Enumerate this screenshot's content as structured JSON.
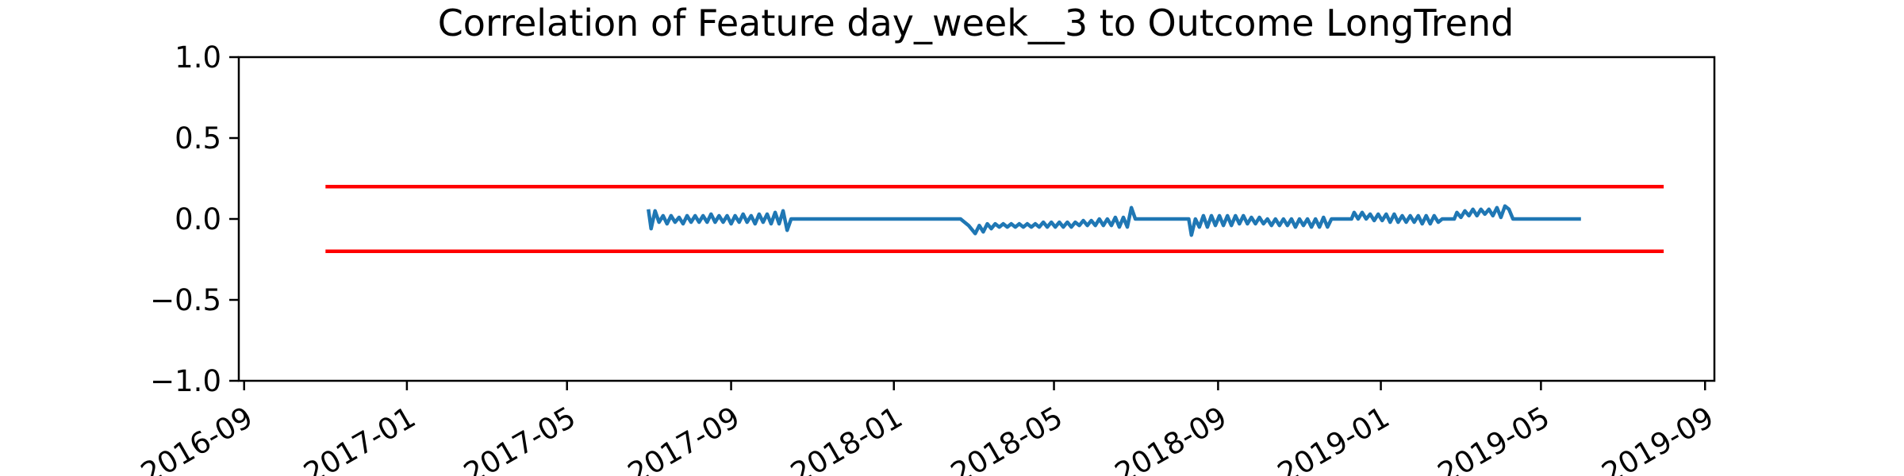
{
  "chart_data": {
    "type": "line",
    "title": "Correlation of Feature day_week__3 to Outcome LongTrend",
    "xlabel": "",
    "ylabel": "",
    "x_type": "date",
    "xlim": [
      "2016-08-28",
      "2019-09-08"
    ],
    "ylim": [
      -1.0,
      1.0
    ],
    "x_ticks": [
      "2016-09-01",
      "2017-01-01",
      "2017-05-01",
      "2017-09-01",
      "2018-01-01",
      "2018-05-01",
      "2018-09-01",
      "2019-01-01",
      "2019-05-01",
      "2019-09-01"
    ],
    "x_tick_labels": [
      "2016-09",
      "2017-01",
      "2017-05",
      "2017-09",
      "2018-01",
      "2018-05",
      "2018-09",
      "2019-01",
      "2019-05",
      "2019-09"
    ],
    "y_ticks": [
      1.0,
      0.5,
      0.0,
      -0.5,
      -1.0
    ],
    "y_tick_labels": [
      "1.0",
      "0.5",
      "0.0",
      "−0.5",
      "−1.0"
    ],
    "grid": false,
    "series": [
      {
        "color": "#1f77b4",
        "points": [
          [
            "2017-07-01",
            0.06
          ],
          [
            "2017-07-03",
            -0.06
          ],
          [
            "2017-07-06",
            0.05
          ],
          [
            "2017-07-09",
            -0.02
          ],
          [
            "2017-07-12",
            0.02
          ],
          [
            "2017-07-15",
            -0.03
          ],
          [
            "2017-07-18",
            0.02
          ],
          [
            "2017-07-21",
            -0.02
          ],
          [
            "2017-07-24",
            0.01
          ],
          [
            "2017-07-27",
            -0.03
          ],
          [
            "2017-07-30",
            0.02
          ],
          [
            "2017-08-02",
            -0.02
          ],
          [
            "2017-08-05",
            0.02
          ],
          [
            "2017-08-08",
            -0.02
          ],
          [
            "2017-08-11",
            0.02
          ],
          [
            "2017-08-14",
            -0.02
          ],
          [
            "2017-08-17",
            0.03
          ],
          [
            "2017-08-20",
            -0.02
          ],
          [
            "2017-08-23",
            0.02
          ],
          [
            "2017-08-26",
            -0.02
          ],
          [
            "2017-08-29",
            0.02
          ],
          [
            "2017-09-01",
            -0.03
          ],
          [
            "2017-09-04",
            0.02
          ],
          [
            "2017-09-07",
            -0.02
          ],
          [
            "2017-09-10",
            0.03
          ],
          [
            "2017-09-13",
            -0.02
          ],
          [
            "2017-09-16",
            0.02
          ],
          [
            "2017-09-19",
            -0.03
          ],
          [
            "2017-09-22",
            0.03
          ],
          [
            "2017-09-25",
            -0.02
          ],
          [
            "2017-09-28",
            0.03
          ],
          [
            "2017-10-01",
            -0.03
          ],
          [
            "2017-10-04",
            0.04
          ],
          [
            "2017-10-07",
            -0.03
          ],
          [
            "2017-10-10",
            0.05
          ],
          [
            "2017-10-13",
            -0.07
          ],
          [
            "2017-10-16",
            0.0
          ],
          [
            "2018-02-20",
            0.0
          ],
          [
            "2018-02-26",
            -0.04
          ],
          [
            "2018-03-03",
            -0.09
          ],
          [
            "2018-03-06",
            -0.04
          ],
          [
            "2018-03-09",
            -0.08
          ],
          [
            "2018-03-12",
            -0.03
          ],
          [
            "2018-03-15",
            -0.06
          ],
          [
            "2018-03-18",
            -0.03
          ],
          [
            "2018-03-21",
            -0.05
          ],
          [
            "2018-03-24",
            -0.03
          ],
          [
            "2018-03-27",
            -0.05
          ],
          [
            "2018-03-30",
            -0.03
          ],
          [
            "2018-04-02",
            -0.05
          ],
          [
            "2018-04-05",
            -0.03
          ],
          [
            "2018-04-08",
            -0.05
          ],
          [
            "2018-04-11",
            -0.03
          ],
          [
            "2018-04-14",
            -0.05
          ],
          [
            "2018-04-17",
            -0.03
          ],
          [
            "2018-04-20",
            -0.05
          ],
          [
            "2018-04-23",
            -0.02
          ],
          [
            "2018-04-26",
            -0.05
          ],
          [
            "2018-04-29",
            -0.02
          ],
          [
            "2018-05-02",
            -0.05
          ],
          [
            "2018-05-05",
            -0.02
          ],
          [
            "2018-05-08",
            -0.05
          ],
          [
            "2018-05-11",
            -0.02
          ],
          [
            "2018-05-14",
            -0.05
          ],
          [
            "2018-05-17",
            -0.02
          ],
          [
            "2018-05-20",
            -0.04
          ],
          [
            "2018-05-23",
            -0.01
          ],
          [
            "2018-05-26",
            -0.04
          ],
          [
            "2018-05-29",
            -0.01
          ],
          [
            "2018-06-01",
            -0.04
          ],
          [
            "2018-06-04",
            0.0
          ],
          [
            "2018-06-07",
            -0.04
          ],
          [
            "2018-06-10",
            0.0
          ],
          [
            "2018-06-13",
            -0.04
          ],
          [
            "2018-06-16",
            0.01
          ],
          [
            "2018-06-19",
            -0.05
          ],
          [
            "2018-06-22",
            0.01
          ],
          [
            "2018-06-25",
            -0.05
          ],
          [
            "2018-06-28",
            0.07
          ],
          [
            "2018-07-01",
            0.0
          ],
          [
            "2018-08-10",
            0.0
          ],
          [
            "2018-08-12",
            -0.1
          ],
          [
            "2018-08-15",
            0.0
          ],
          [
            "2018-08-18",
            -0.05
          ],
          [
            "2018-08-21",
            0.02
          ],
          [
            "2018-08-24",
            -0.05
          ],
          [
            "2018-08-27",
            0.02
          ],
          [
            "2018-08-30",
            -0.04
          ],
          [
            "2018-09-02",
            0.02
          ],
          [
            "2018-09-05",
            -0.04
          ],
          [
            "2018-09-08",
            0.02
          ],
          [
            "2018-09-11",
            -0.04
          ],
          [
            "2018-09-14",
            0.02
          ],
          [
            "2018-09-17",
            -0.03
          ],
          [
            "2018-09-20",
            0.02
          ],
          [
            "2018-09-23",
            -0.03
          ],
          [
            "2018-09-26",
            0.01
          ],
          [
            "2018-09-29",
            -0.03
          ],
          [
            "2018-10-02",
            0.01
          ],
          [
            "2018-10-05",
            -0.03
          ],
          [
            "2018-10-08",
            0.0
          ],
          [
            "2018-10-11",
            -0.04
          ],
          [
            "2018-10-14",
            0.0
          ],
          [
            "2018-10-17",
            -0.04
          ],
          [
            "2018-10-20",
            0.0
          ],
          [
            "2018-10-23",
            -0.04
          ],
          [
            "2018-10-26",
            0.0
          ],
          [
            "2018-10-29",
            -0.05
          ],
          [
            "2018-11-01",
            0.0
          ],
          [
            "2018-11-04",
            -0.04
          ],
          [
            "2018-11-07",
            0.0
          ],
          [
            "2018-11-10",
            -0.05
          ],
          [
            "2018-11-13",
            0.0
          ],
          [
            "2018-11-16",
            -0.05
          ],
          [
            "2018-11-19",
            0.01
          ],
          [
            "2018-11-22",
            -0.05
          ],
          [
            "2018-11-25",
            0.0
          ],
          [
            "2018-12-10",
            0.0
          ],
          [
            "2018-12-12",
            0.04
          ],
          [
            "2018-12-15",
            0.0
          ],
          [
            "2018-12-18",
            0.04
          ],
          [
            "2018-12-21",
            0.0
          ],
          [
            "2018-12-24",
            0.03
          ],
          [
            "2018-12-27",
            -0.01
          ],
          [
            "2018-12-30",
            0.03
          ],
          [
            "2019-01-02",
            -0.01
          ],
          [
            "2019-01-05",
            0.03
          ],
          [
            "2019-01-08",
            -0.02
          ],
          [
            "2019-01-11",
            0.03
          ],
          [
            "2019-01-14",
            -0.02
          ],
          [
            "2019-01-17",
            0.02
          ],
          [
            "2019-01-20",
            -0.02
          ],
          [
            "2019-01-23",
            0.02
          ],
          [
            "2019-01-26",
            -0.02
          ],
          [
            "2019-01-29",
            0.02
          ],
          [
            "2019-02-01",
            -0.03
          ],
          [
            "2019-02-04",
            0.02
          ],
          [
            "2019-02-07",
            -0.03
          ],
          [
            "2019-02-10",
            0.02
          ],
          [
            "2019-02-13",
            -0.02
          ],
          [
            "2019-02-16",
            0.0
          ],
          [
            "2019-02-25",
            0.0
          ],
          [
            "2019-02-27",
            0.04
          ],
          [
            "2019-03-02",
            0.01
          ],
          [
            "2019-03-05",
            0.05
          ],
          [
            "2019-03-08",
            0.02
          ],
          [
            "2019-03-11",
            0.06
          ],
          [
            "2019-03-14",
            0.02
          ],
          [
            "2019-03-17",
            0.06
          ],
          [
            "2019-03-20",
            0.03
          ],
          [
            "2019-03-23",
            0.06
          ],
          [
            "2019-03-26",
            0.02
          ],
          [
            "2019-03-29",
            0.07
          ],
          [
            "2019-04-01",
            0.01
          ],
          [
            "2019-04-04",
            0.08
          ],
          [
            "2019-04-07",
            0.06
          ],
          [
            "2019-04-10",
            0.0
          ],
          [
            "2019-05-31",
            0.0
          ]
        ]
      },
      {
        "color": "#ff0000",
        "points": [
          [
            "2016-11-01",
            0.2
          ],
          [
            "2019-08-01",
            0.2
          ]
        ]
      },
      {
        "color": "#ff0000",
        "points": [
          [
            "2016-11-01",
            -0.2
          ],
          [
            "2019-08-01",
            -0.2
          ]
        ]
      }
    ]
  }
}
